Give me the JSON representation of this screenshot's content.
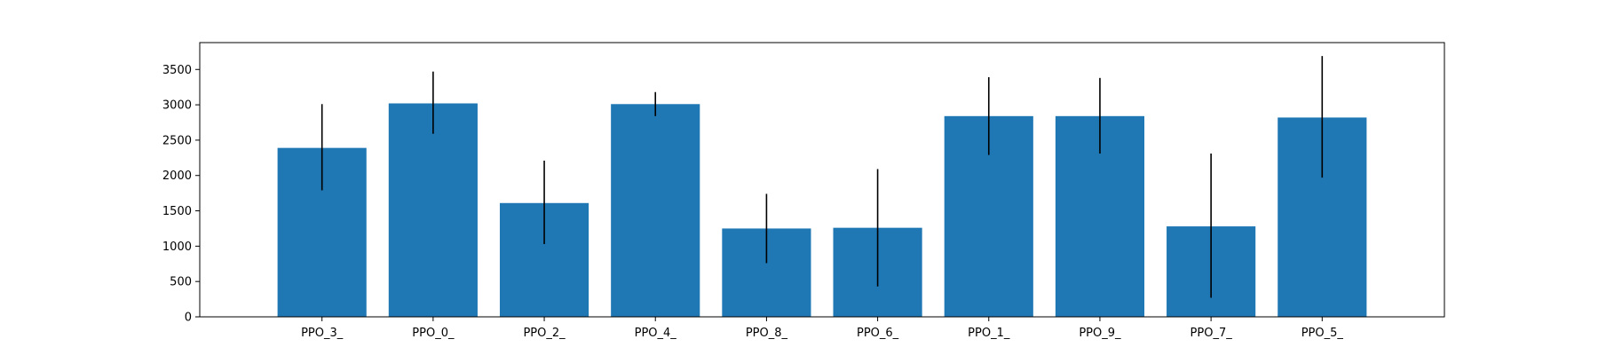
{
  "chart_data": {
    "type": "bar",
    "title": "",
    "xlabel": "",
    "ylabel": "",
    "categories": [
      "PPO_3_",
      "PPO_0_",
      "PPO_2_",
      "PPO_4_",
      "PPO_8_",
      "PPO_6_",
      "PPO_1_",
      "PPO_9_",
      "PPO_7_",
      "PPO_5_"
    ],
    "values": [
      2390,
      3020,
      1610,
      3010,
      1250,
      1260,
      2840,
      2840,
      1280,
      2820
    ],
    "error_low": [
      1790,
      2590,
      1030,
      2840,
      760,
      430,
      2290,
      2310,
      270,
      1970
    ],
    "error_high": [
      3010,
      3470,
      2210,
      3180,
      1740,
      2090,
      3390,
      3380,
      2310,
      3690
    ],
    "ylim": [
      0,
      3880
    ],
    "yticks": [
      0,
      500,
      1000,
      1500,
      2000,
      2500,
      3000,
      3500
    ],
    "grid": false,
    "legend": "none",
    "bar_color": "#1f77b4",
    "error_color": "#000000"
  }
}
